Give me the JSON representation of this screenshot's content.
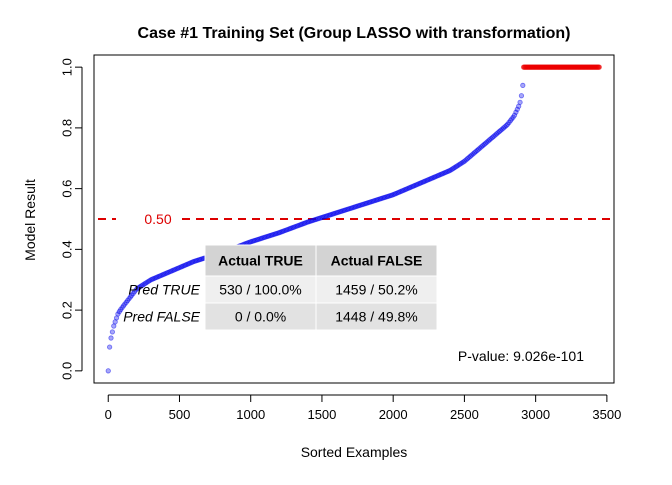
{
  "chart_data": {
    "type": "scatter",
    "title": "Case #1 Training Set (Group LASSO with transformation)",
    "xlabel": "Sorted Examples",
    "ylabel": "Model Result",
    "xlim": [
      -100,
      3550
    ],
    "ylim": [
      -0.04,
      1.04
    ],
    "x_ticks": [
      "0",
      "500",
      "1000",
      "1500",
      "2000",
      "2500",
      "3000",
      "3500"
    ],
    "y_ticks": [
      "0.0",
      "0.2",
      "0.4",
      "0.6",
      "0.8",
      "1.0"
    ],
    "threshold": {
      "value": 0.5,
      "label": "0.50",
      "color": "#dd0000"
    },
    "series": [
      {
        "color": "#0000ee",
        "points": [
          [
            0,
            0.0
          ],
          [
            3,
            0.04
          ],
          [
            10,
            0.08
          ],
          [
            20,
            0.11
          ],
          [
            40,
            0.15
          ],
          [
            70,
            0.19
          ],
          [
            100,
            0.21
          ],
          [
            150,
            0.24
          ],
          [
            200,
            0.27
          ],
          [
            300,
            0.3
          ],
          [
            400,
            0.32
          ],
          [
            500,
            0.34
          ],
          [
            600,
            0.36
          ],
          [
            800,
            0.39
          ],
          [
            1000,
            0.425
          ],
          [
            1200,
            0.455
          ],
          [
            1400,
            0.49
          ],
          [
            1600,
            0.52
          ],
          [
            1800,
            0.55
          ],
          [
            2000,
            0.58
          ],
          [
            2200,
            0.62
          ],
          [
            2400,
            0.66
          ],
          [
            2500,
            0.69
          ],
          [
            2600,
            0.73
          ],
          [
            2700,
            0.77
          ],
          [
            2800,
            0.81
          ],
          [
            2850,
            0.84
          ],
          [
            2880,
            0.87
          ],
          [
            2895,
            0.89
          ],
          [
            2905,
            0.92
          ],
          [
            2910,
            0.94
          ]
        ]
      },
      {
        "color": "#ee0000",
        "points": [
          [
            2915,
            1.0
          ],
          [
            3449,
            1.0
          ]
        ]
      }
    ],
    "table": {
      "headers": [
        "",
        "Actual TRUE",
        "Actual FALSE"
      ],
      "rows": [
        [
          "Pred TRUE",
          "530 / 100.0%",
          "1459 / 50.2%"
        ],
        [
          "Pred FALSE",
          "0 / 0.0%",
          "1448 / 49.8%"
        ]
      ]
    },
    "annotation": "P-value: 9.026e-101"
  }
}
